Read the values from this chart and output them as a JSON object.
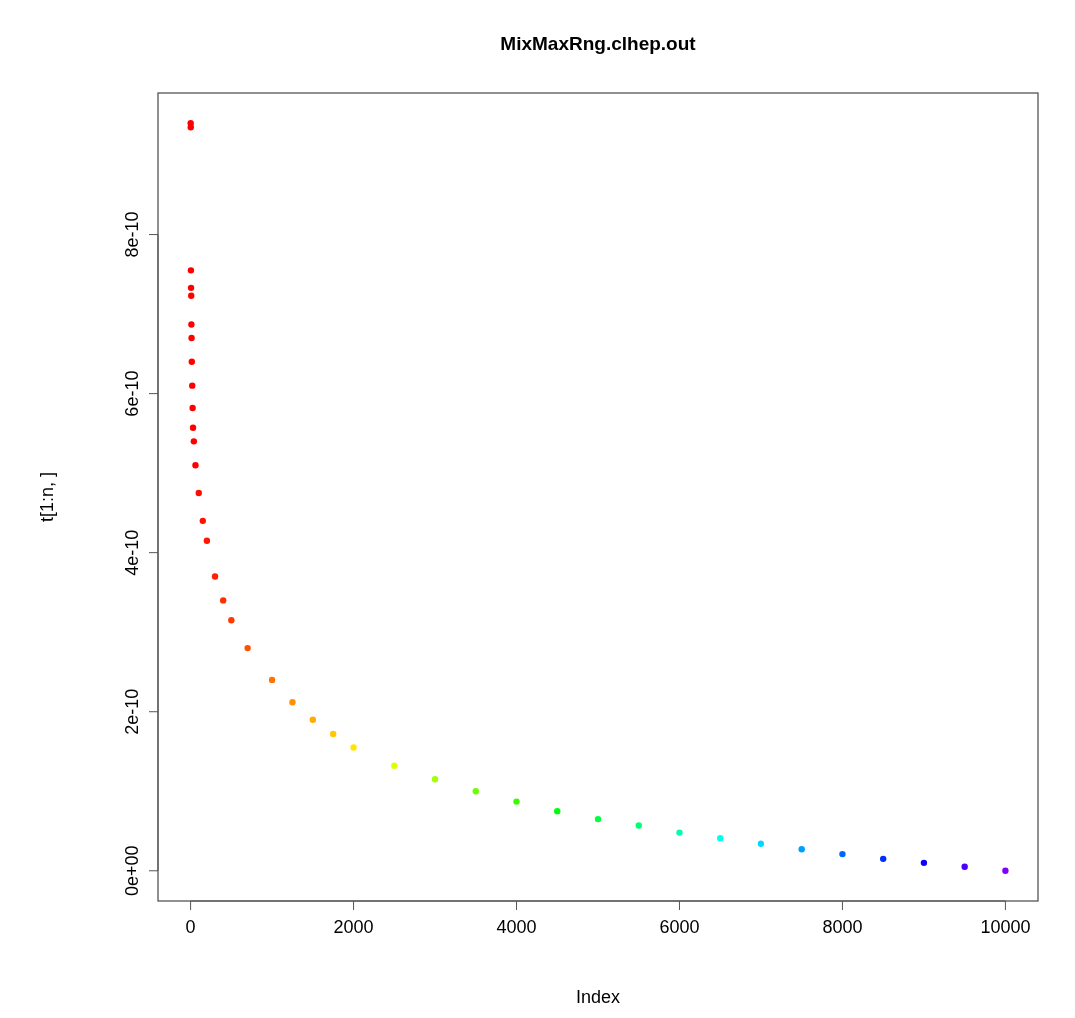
{
  "chart_data": {
    "type": "scatter",
    "title": "MixMaxRng.clhep.out",
    "xlabel": "Index",
    "ylabel": "t[1:n, ]",
    "x": [
      1,
      2,
      4,
      6,
      8,
      10,
      12,
      15,
      20,
      25,
      30,
      40,
      60,
      100,
      150,
      200,
      300,
      400,
      500,
      700,
      1000,
      1250,
      1500,
      1750,
      2000,
      2500,
      3000,
      3500,
      4000,
      4500,
      5000,
      5500,
      6000,
      6500,
      7000,
      7500,
      8000,
      8500,
      9000,
      9500,
      10000
    ],
    "series": [
      {
        "values": [
          9.4e-10,
          9.35e-10,
          7.55e-10,
          7.33e-10,
          7.23e-10,
          6.87e-10,
          6.7e-10,
          6.4e-10,
          6.1e-10,
          5.82e-10,
          5.57e-10,
          5.4e-10,
          5.1e-10,
          4.75e-10,
          4.4e-10,
          4.15e-10,
          3.7e-10,
          3.4e-10,
          3.15e-10,
          2.8e-10,
          2.4e-10,
          2.12e-10,
          1.9e-10,
          1.72e-10,
          1.55e-10,
          1.32e-10,
          1.15e-10,
          1e-10,
          8.7e-11,
          7.5e-11,
          6.5e-11,
          5.7e-11,
          4.8e-11,
          4.1e-11,
          3.4e-11,
          2.7e-11,
          2.1e-11,
          1.5e-11,
          1e-11,
          5e-12,
          0
        ],
        "colors": [
          "#ff0000",
          "#ff0000",
          "#ff0000",
          "#ff0000",
          "#ff0000",
          "#ff0000",
          "#ff0000",
          "#ff0000",
          "#ff0000",
          "#ff0000",
          "#ff0000",
          "#ff0000",
          "#ff0000",
          "#ff0b00",
          "#ff1100",
          "#ff1700",
          "#ff2200",
          "#ff2f00",
          "#ff3900",
          "#ff5100",
          "#ff7300",
          "#ff9100",
          "#ffac00",
          "#ffc800",
          "#ffe600",
          "#dfff00",
          "#a6ff00",
          "#6cff00",
          "#33ff00",
          "#00ff06",
          "#00ff40",
          "#00ff79",
          "#00ffb2",
          "#00ffec",
          "#00d9ff",
          "#009fff",
          "#0066ff",
          "#002dff",
          "#0d00ff",
          "#4600ff",
          "#8000ff"
        ]
      }
    ],
    "xlim": [
      -400,
      10400
    ],
    "ylim": [
      -3.8e-11,
      9.78e-10
    ],
    "xticks": [
      0,
      2000,
      4000,
      6000,
      8000,
      10000
    ],
    "yticks": [
      {
        "value": 0,
        "label": "0e+00"
      },
      {
        "value": 2e-10,
        "label": "2e-10"
      },
      {
        "value": 4e-10,
        "label": "4e-10"
      },
      {
        "value": 6e-10,
        "label": "6e-10"
      },
      {
        "value": 8e-10,
        "label": "8e-10"
      }
    ],
    "grid": false,
    "marker": "circle"
  }
}
